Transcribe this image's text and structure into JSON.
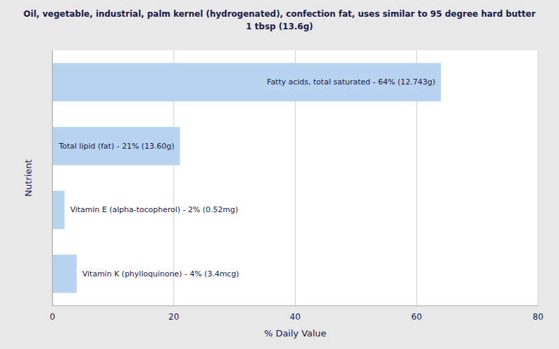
{
  "chart_data": {
    "type": "bar",
    "orientation": "horizontal",
    "title": "Oil, vegetable, industrial, palm kernel (hydrogenated), confection fat, uses similar to 95 degree hard butter\n1 tbsp (13.6g)",
    "xlabel": "% Daily Value",
    "ylabel": "Nutrient",
    "categories": [
      "Fatty acids, total saturated - 64% (12.743g)",
      "Total lipid (fat) - 21% (13.60g)",
      "Vitamin E (alpha-tocopherol) - 2% (0.52mg)",
      "Vitamin K (phylloquinone) - 4% (3.4mcg)"
    ],
    "values": [
      64,
      21,
      2,
      4
    ],
    "color": "#b8d4f0",
    "xlim": [
      0,
      80
    ],
    "xticks": [
      0,
      20,
      40,
      60,
      80
    ],
    "grid": true
  }
}
